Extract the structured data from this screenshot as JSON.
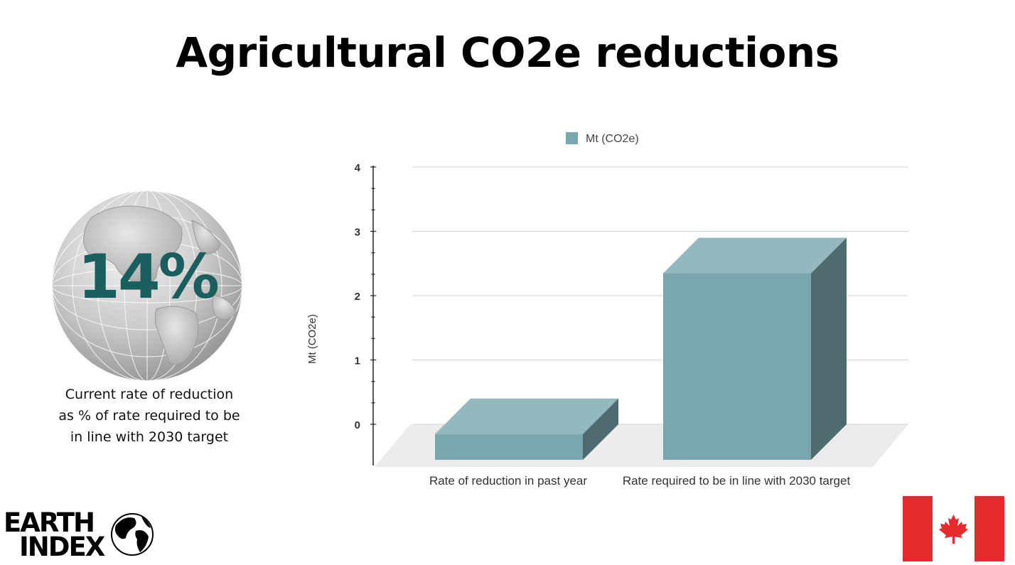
{
  "slide": {
    "title": "Agricultural CO2e reductions"
  },
  "stat": {
    "value": "14%",
    "caption_lines": [
      "Current rate of reduction",
      "as % of rate required to be",
      "in line with 2030 target"
    ]
  },
  "logo": {
    "line1": "EARTH",
    "line2": "INDEX"
  },
  "colors": {
    "bar_front": "#7aa6ae",
    "bar_top": "#95b7be",
    "bar_side": "#4e6b72",
    "stat": "#1a5e5e",
    "flag_red": "#e52b2e"
  },
  "icons": [
    "globe-icon",
    "earth-index-logo",
    "canada-flag-icon"
  ],
  "chart_data": {
    "type": "bar",
    "categories": [
      "Rate of reduction in past year",
      "Rate required to be in line with 2030 target"
    ],
    "series": [
      {
        "name": "Mt (CO2e)",
        "values": [
          0.4,
          2.9
        ]
      }
    ],
    "title": "",
    "xlabel": "",
    "ylabel": "Mt (CO2e)",
    "ylim": [
      0,
      4
    ],
    "yticks": [
      "0",
      "1",
      "2",
      "3",
      "4"
    ],
    "grid": true,
    "legend": "top-center",
    "style": "3d"
  }
}
